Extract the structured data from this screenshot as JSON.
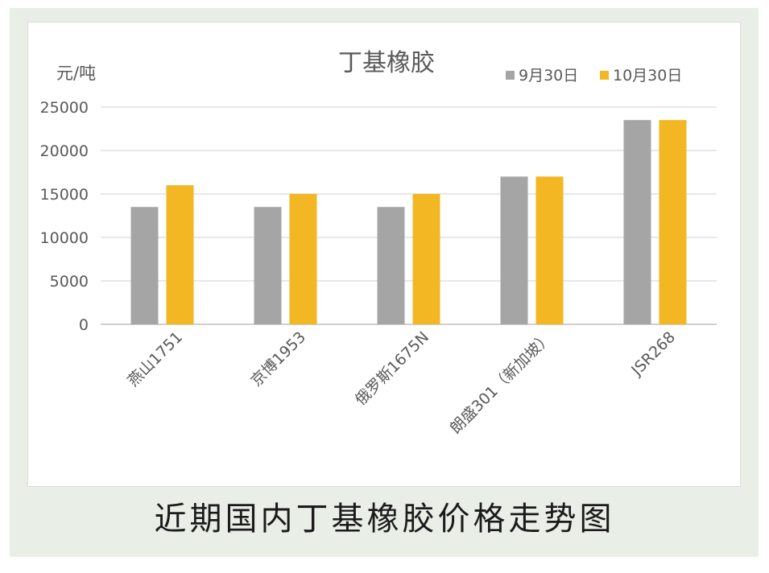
{
  "caption": "近期国内丁基橡胶价格走势图",
  "chart_data": {
    "type": "bar",
    "title": "丁基橡胶",
    "ylabel": "元/吨",
    "xlabel": "",
    "ylim": [
      0,
      25000
    ],
    "yticks": [
      0,
      5000,
      10000,
      15000,
      20000,
      25000
    ],
    "grid": true,
    "legend_position": "top-right",
    "categories": [
      "燕山1751",
      "京博1953",
      "俄罗斯1675N",
      "朗盛301（新加坡）",
      "JSR268"
    ],
    "series": [
      {
        "name": "9月30日",
        "color": "#a5a5a5",
        "values": [
          13500,
          13500,
          13500,
          17000,
          23500
        ]
      },
      {
        "name": "10月30日",
        "color": "#f2b722",
        "values": [
          16000,
          15000,
          15000,
          17000,
          23500
        ]
      }
    ]
  }
}
